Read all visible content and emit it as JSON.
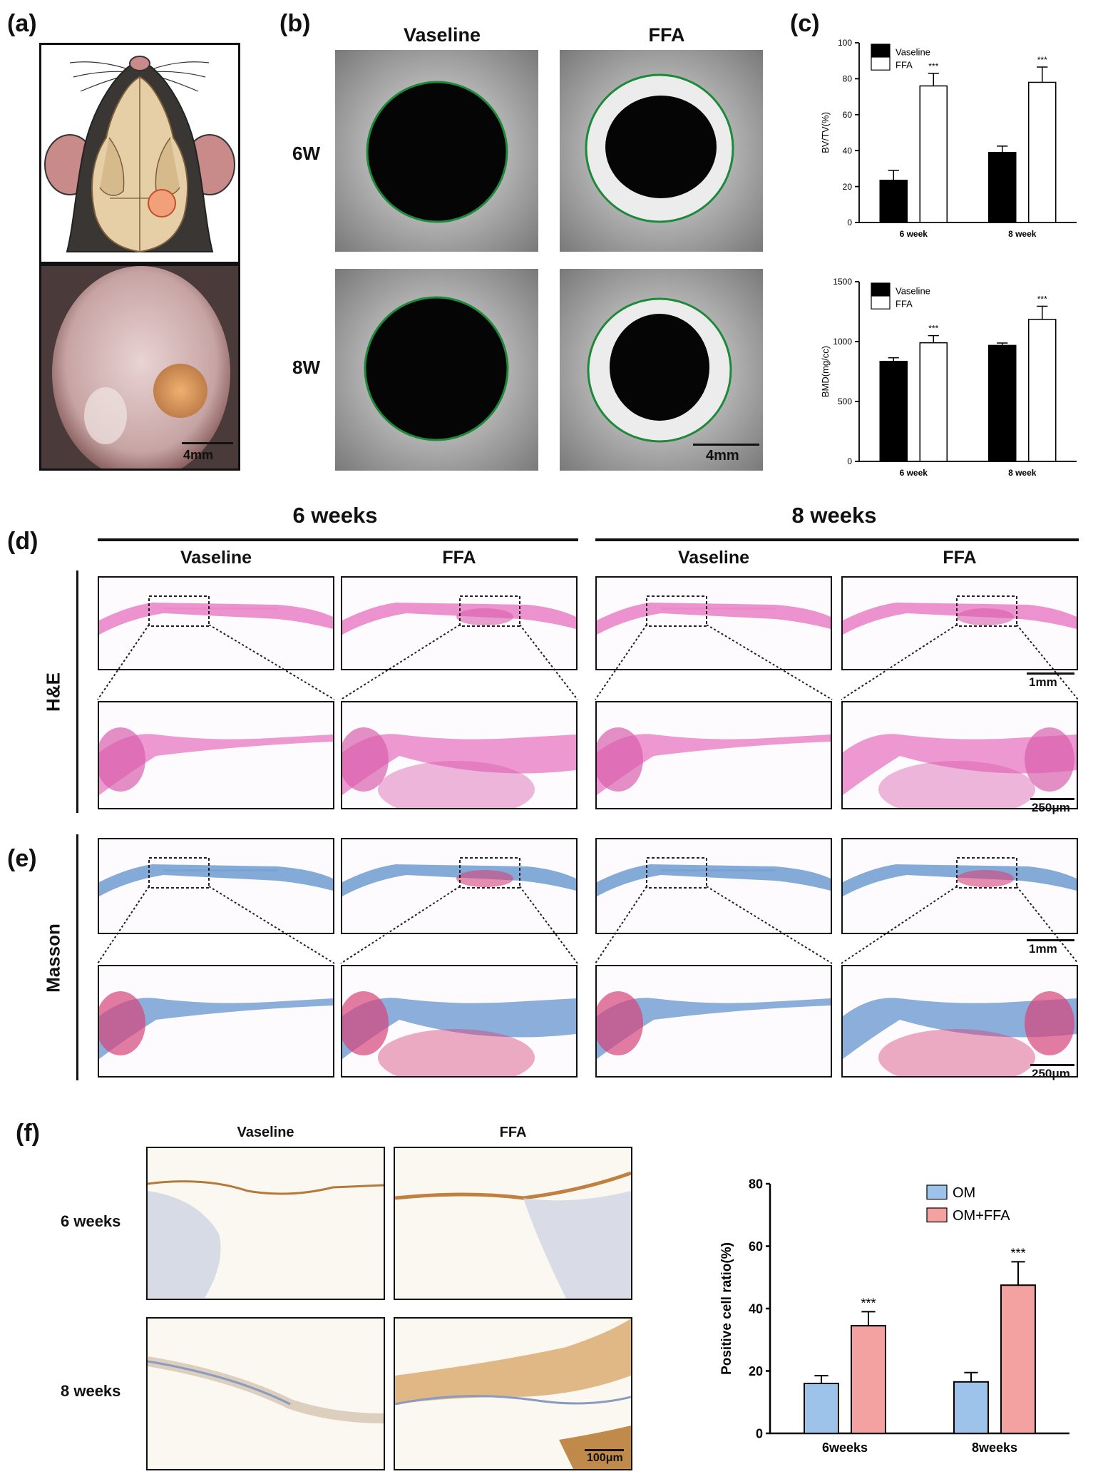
{
  "panels": {
    "a": "(a)",
    "b": "(b)",
    "c": "(c)",
    "d": "(d)",
    "e": "(e)",
    "f": "(f)"
  },
  "panel_a": {
    "scale": "4mm"
  },
  "panel_b": {
    "cols": [
      "Vaseline",
      "FFA"
    ],
    "rows": [
      "6W",
      "8W"
    ],
    "scale": "4mm"
  },
  "histology": {
    "time_headers": [
      "6 weeks",
      "8 weeks"
    ],
    "group_headers": [
      "Vaseline",
      "FFA",
      "Vaseline",
      "FFA"
    ],
    "stain_d": "H&E",
    "stain_e": "Masson",
    "scale_low": "1mm",
    "scale_high": "250μm"
  },
  "panel_f": {
    "cols": [
      "Vaseline",
      "FFA"
    ],
    "rows": [
      "6 weeks",
      "8 weeks"
    ],
    "scale": "100μm"
  },
  "colors": {
    "he_pink": "#e97fc6",
    "masson_blue": "#6f9bd1",
    "masson_red": "#d6457b",
    "ihc_brown": "#b57a3a",
    "bar_om": "#9dc3ea",
    "bar_omffa": "#f4a1a1",
    "circle_green": "#1d8a3a"
  },
  "chart_data": [
    {
      "type": "bar",
      "categories": [
        "6 week",
        "8 week"
      ],
      "series": [
        {
          "name": "Vaseline",
          "values": [
            23.5,
            39
          ],
          "errors": [
            5.5,
            3.5
          ],
          "color": "#000000"
        },
        {
          "name": "FFA",
          "values": [
            76,
            78
          ],
          "errors": [
            7,
            8.5
          ],
          "color": "#ffffff"
        }
      ],
      "ylabel": "BV/TV(%)",
      "xlabel": "",
      "ylim": [
        0,
        100
      ],
      "yticks": [
        "0",
        "20",
        "40",
        "60",
        "80",
        "100"
      ],
      "annotations": [
        "***",
        "***"
      ],
      "legend": "top-left"
    },
    {
      "type": "bar",
      "categories": [
        "6 week",
        "8 week"
      ],
      "series": [
        {
          "name": "Vaseline",
          "values": [
            835,
            968
          ],
          "errors": [
            30,
            20
          ],
          "color": "#000000"
        },
        {
          "name": "FFA",
          "values": [
            990,
            1185
          ],
          "errors": [
            60,
            110
          ],
          "color": "#ffffff"
        }
      ],
      "ylabel": "BMD(mg/cc)",
      "xlabel": "",
      "ylim": [
        0,
        1500
      ],
      "yticks": [
        "0",
        "500",
        "1000",
        "1500"
      ],
      "annotations": [
        "***",
        "***"
      ],
      "legend": "top-left"
    },
    {
      "type": "bar",
      "categories": [
        "6weeks",
        "8weeks"
      ],
      "series": [
        {
          "name": "OM",
          "values": [
            16,
            16.5
          ],
          "errors": [
            2.5,
            3
          ],
          "color": "#9dc3ea"
        },
        {
          "name": "OM+FFA",
          "values": [
            34.5,
            47.5
          ],
          "errors": [
            4.5,
            7.5
          ],
          "color": "#f4a1a1"
        }
      ],
      "ylabel": "Positive cell ratio(%)",
      "xlabel": "",
      "ylim": [
        0,
        80
      ],
      "yticks": [
        "0",
        "20",
        "40",
        "60",
        "80"
      ],
      "annotations": [
        "***",
        "***"
      ],
      "legend": "top-right"
    }
  ]
}
